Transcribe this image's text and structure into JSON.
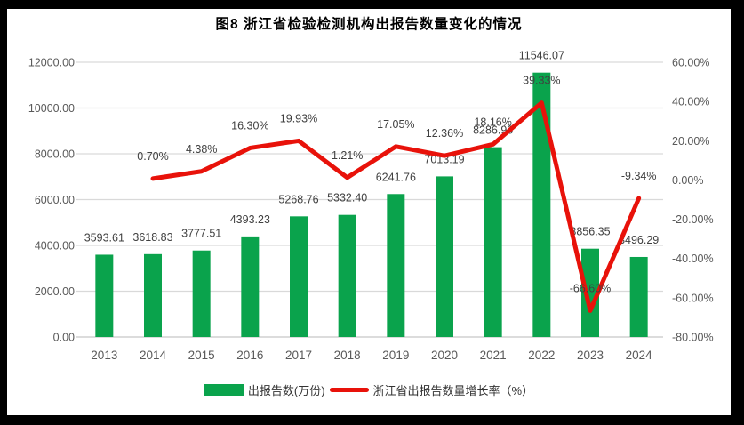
{
  "chart_data": {
    "type": "bar",
    "subtype": "combo-bar-line",
    "title": "图8 浙江省检验检测机构出报告数量变化的情况",
    "categories": [
      "2013",
      "2014",
      "2015",
      "2016",
      "2017",
      "2018",
      "2019",
      "2020",
      "2021",
      "2022",
      "2023",
      "2024"
    ],
    "series": [
      {
        "name": "出报告数(万份)",
        "type": "bar",
        "axis": "left",
        "color": "#0aa34c",
        "values": [
          3593.61,
          3618.83,
          3777.51,
          4393.23,
          5268.76,
          5332.4,
          6241.76,
          7013.19,
          8286.98,
          11546.07,
          3856.35,
          3496.29
        ],
        "labels": [
          "3593.61",
          "3618.83",
          "3777.51",
          "4393.23",
          "5268.76",
          "5332.40",
          "6241.76",
          "7013.19",
          "8286.98",
          "11546.07",
          "3856.35",
          "3496.29"
        ]
      },
      {
        "name": "浙江省出报告数量增长率（%）",
        "type": "line",
        "axis": "right",
        "color": "#e8120a",
        "values": [
          null,
          0.7,
          4.38,
          16.3,
          19.93,
          1.21,
          17.05,
          12.36,
          18.16,
          39.33,
          -66.6,
          -9.34
        ],
        "labels": [
          null,
          "0.70%",
          "4.38%",
          "16.30%",
          "19.93%",
          "1.21%",
          "17.05%",
          "12.36%",
          "18.16%",
          "39.33%",
          "-66.60%",
          "-9.34%"
        ]
      }
    ],
    "left_axis": {
      "min": 0,
      "max": 12000,
      "step": 2000,
      "ticks": [
        "12000.00",
        "10000.00",
        "8000.00",
        "6000.00",
        "4000.00",
        "2000.00",
        "0.00"
      ]
    },
    "right_axis": {
      "min": -80,
      "max": 60,
      "step": 20,
      "ticks": [
        "60.00%",
        "40.00%",
        "20.00%",
        "0.00%",
        "-20.00%",
        "-40.00%",
        "-60.00%",
        "-80.00%"
      ]
    },
    "grid": true,
    "legend_position": "bottom"
  }
}
